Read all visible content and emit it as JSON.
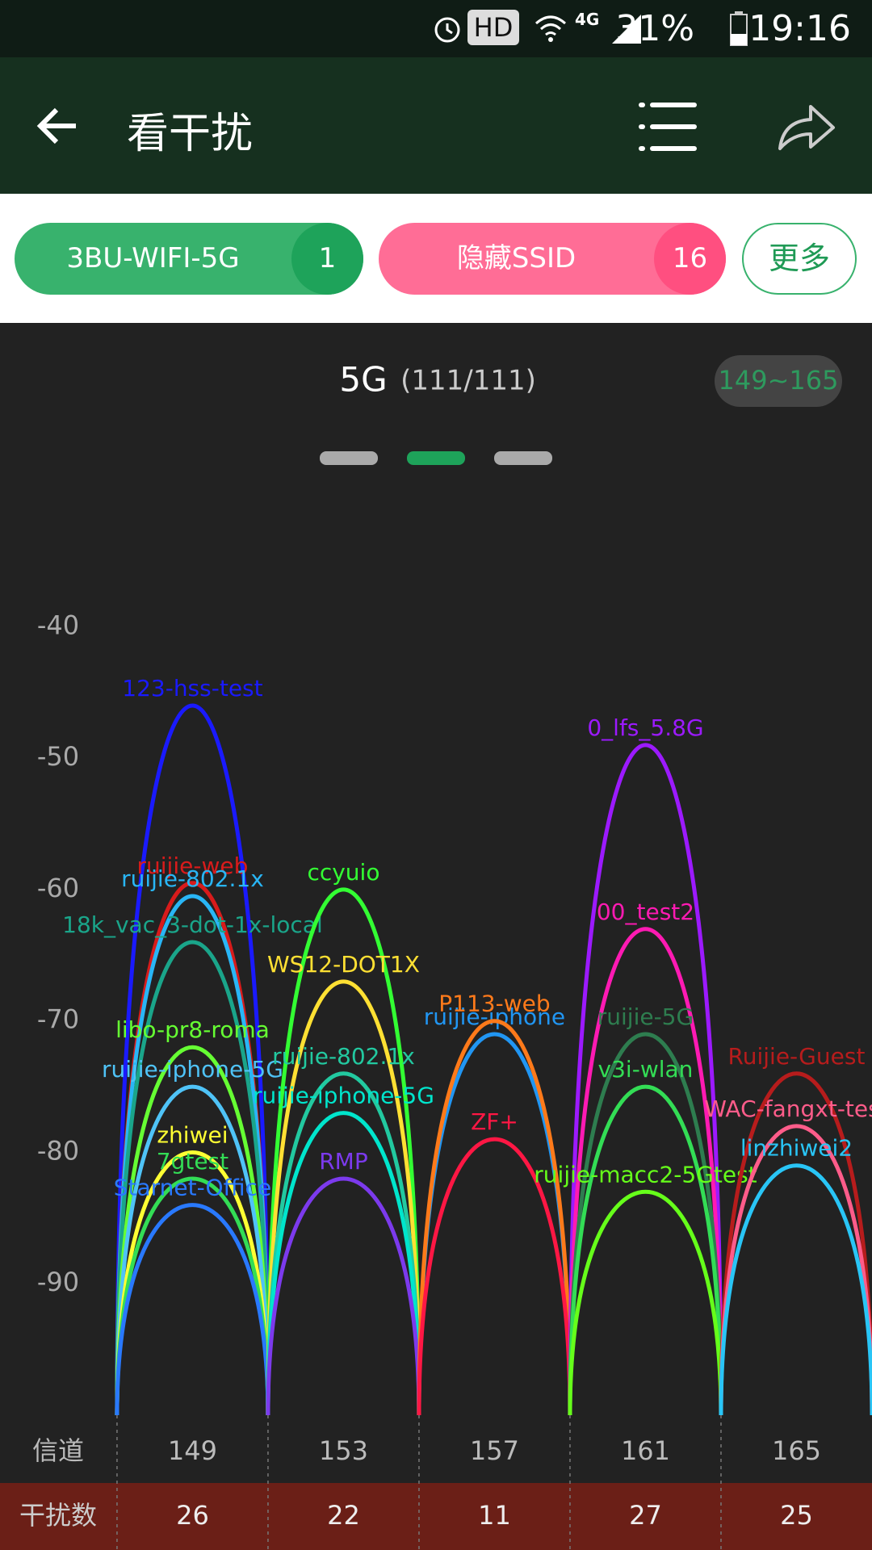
{
  "status_bar": {
    "hd": "HD",
    "network": "4G",
    "battery": "31%",
    "time": "19:16"
  },
  "app_bar": {
    "title": "看干扰"
  },
  "filters": [
    {
      "name": "3BU-WIFI-5G",
      "count": "1"
    },
    {
      "name": "隐藏SSID",
      "count": "16"
    }
  ],
  "more_button": "更多",
  "chart_data": {
    "type": "arc",
    "title": "5G",
    "subtitle": "(111/111)",
    "range_badge": "149~165",
    "x_label": "信道",
    "xlim": [
      143.9,
      167
    ],
    "xticks": [
      149,
      153,
      157,
      161,
      165
    ],
    "ylim": [
      -100,
      -35
    ],
    "yticks": [
      -40,
      -50,
      -60,
      -70,
      -80,
      -90
    ],
    "interference": {
      "label": "干扰数",
      "values": [
        26,
        22,
        11,
        27,
        25
      ]
    },
    "series": [
      {
        "name": "123-hss-test",
        "channel": 149,
        "rssi": -46,
        "color": "#1a1aff"
      },
      {
        "name": "ruijie-web",
        "channel": 149,
        "rssi": -59.5,
        "color": "#d81b1b"
      },
      {
        "name": "ruijie-802.1x",
        "channel": 149,
        "rssi": -60.5,
        "color": "#29b6f6"
      },
      {
        "name": "18k_vac_3-dot-1x-local",
        "channel": 149,
        "rssi": -64,
        "color": "#1aa58a"
      },
      {
        "name": "libo-pr8-roma",
        "channel": 149,
        "rssi": -72,
        "color": "#66ff33"
      },
      {
        "name": "ruijie-iphone-5G",
        "channel": 149,
        "rssi": -75,
        "color": "#4fc3f7"
      },
      {
        "name": "zhiwei",
        "channel": 149,
        "rssi": -80,
        "color": "#ffff33"
      },
      {
        "name": "7gtest",
        "channel": 149,
        "rssi": -82,
        "color": "#33dd55"
      },
      {
        "name": "Starnet-Office",
        "channel": 149,
        "rssi": -84,
        "color": "#2979ff"
      },
      {
        "name": "ccyuio",
        "channel": 153,
        "rssi": -60,
        "color": "#33ff33"
      },
      {
        "name": "WS12-DOT1X",
        "channel": 153,
        "rssi": -67,
        "color": "#ffe033"
      },
      {
        "name": "ruijie-802.1x",
        "channel": 153,
        "rssi": -74,
        "color": "#22c9a0"
      },
      {
        "name": "ruijie-iphone-5G",
        "channel": 153,
        "rssi": -77,
        "color": "#00e5cc"
      },
      {
        "name": "RMP",
        "channel": 153,
        "rssi": -82,
        "color": "#7c3aed"
      },
      {
        "name": "ruijie-iphone",
        "channel": 157,
        "rssi": -71,
        "color": "#2196f3"
      },
      {
        "name": "P113-web",
        "channel": 157,
        "rssi": -70,
        "color": "#ff7a1a"
      },
      {
        "name": "ZF+",
        "channel": 157,
        "rssi": -79,
        "color": "#ff1744"
      },
      {
        "name": "0_lfs_5.8G",
        "channel": 161,
        "rssi": -49,
        "color": "#9c1aff"
      },
      {
        "name": "00_test2",
        "channel": 161,
        "rssi": -63,
        "color": "#ff1ab3"
      },
      {
        "name": "ruijie-5G",
        "channel": 161,
        "rssi": -71,
        "color": "#2e7d4f"
      },
      {
        "name": "v3i-wlan",
        "channel": 161,
        "rssi": -75,
        "color": "#33dd55"
      },
      {
        "name": "ruijie-macc2-5Gtest",
        "channel": 161,
        "rssi": -83,
        "color": "#66ff1a"
      },
      {
        "name": "Ruijie-Guest",
        "channel": 165,
        "rssi": -74,
        "color": "#b71c1c"
      },
      {
        "name": "WAC-fangxt-test",
        "channel": 165,
        "rssi": -78,
        "color": "#ff5c8a"
      },
      {
        "name": "linzhiwei2",
        "channel": 165,
        "rssi": -81,
        "color": "#29c5f6"
      }
    ]
  }
}
